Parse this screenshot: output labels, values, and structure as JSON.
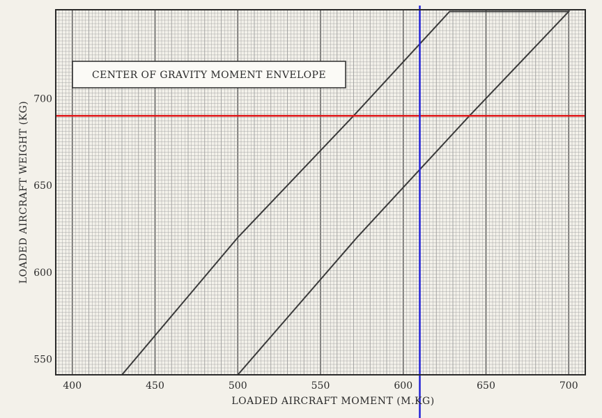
{
  "chart_data": {
    "type": "line",
    "title": "CENTER OF GRAVITY MOMENT ENVELOPE",
    "xlabel": "LOADED AIRCRAFT MOMENT (M.KG)",
    "ylabel": "LOADED AIRCRAFT WEIGHT (KG)",
    "xlim": [
      390,
      710
    ],
    "ylim": [
      541,
      751
    ],
    "x_ticks": [
      400,
      450,
      500,
      550,
      600,
      650,
      700
    ],
    "y_ticks": [
      550,
      600,
      650,
      700
    ],
    "grid": true,
    "series": [
      {
        "name": "",
        "color": "#3a3a3a",
        "points": [
          [
            430,
            541
          ],
          [
            500,
            620
          ],
          [
            570,
            690
          ],
          [
            628,
            750
          ],
          [
            700,
            750
          ],
          [
            640,
            690
          ],
          [
            572,
            620
          ],
          [
            500,
            541
          ]
        ]
      }
    ],
    "reference_lines": [
      {
        "orientation": "horizontal",
        "value": 690,
        "color": "#e0191b"
      },
      {
        "orientation": "vertical",
        "value": 610,
        "color": "#2323d6"
      }
    ],
    "colors": {
      "paper": "#f3f1ea",
      "grid_minor": "#9e9e9e",
      "grid_major": "#4a4a4a",
      "envelope": "#3a3a3a"
    }
  }
}
